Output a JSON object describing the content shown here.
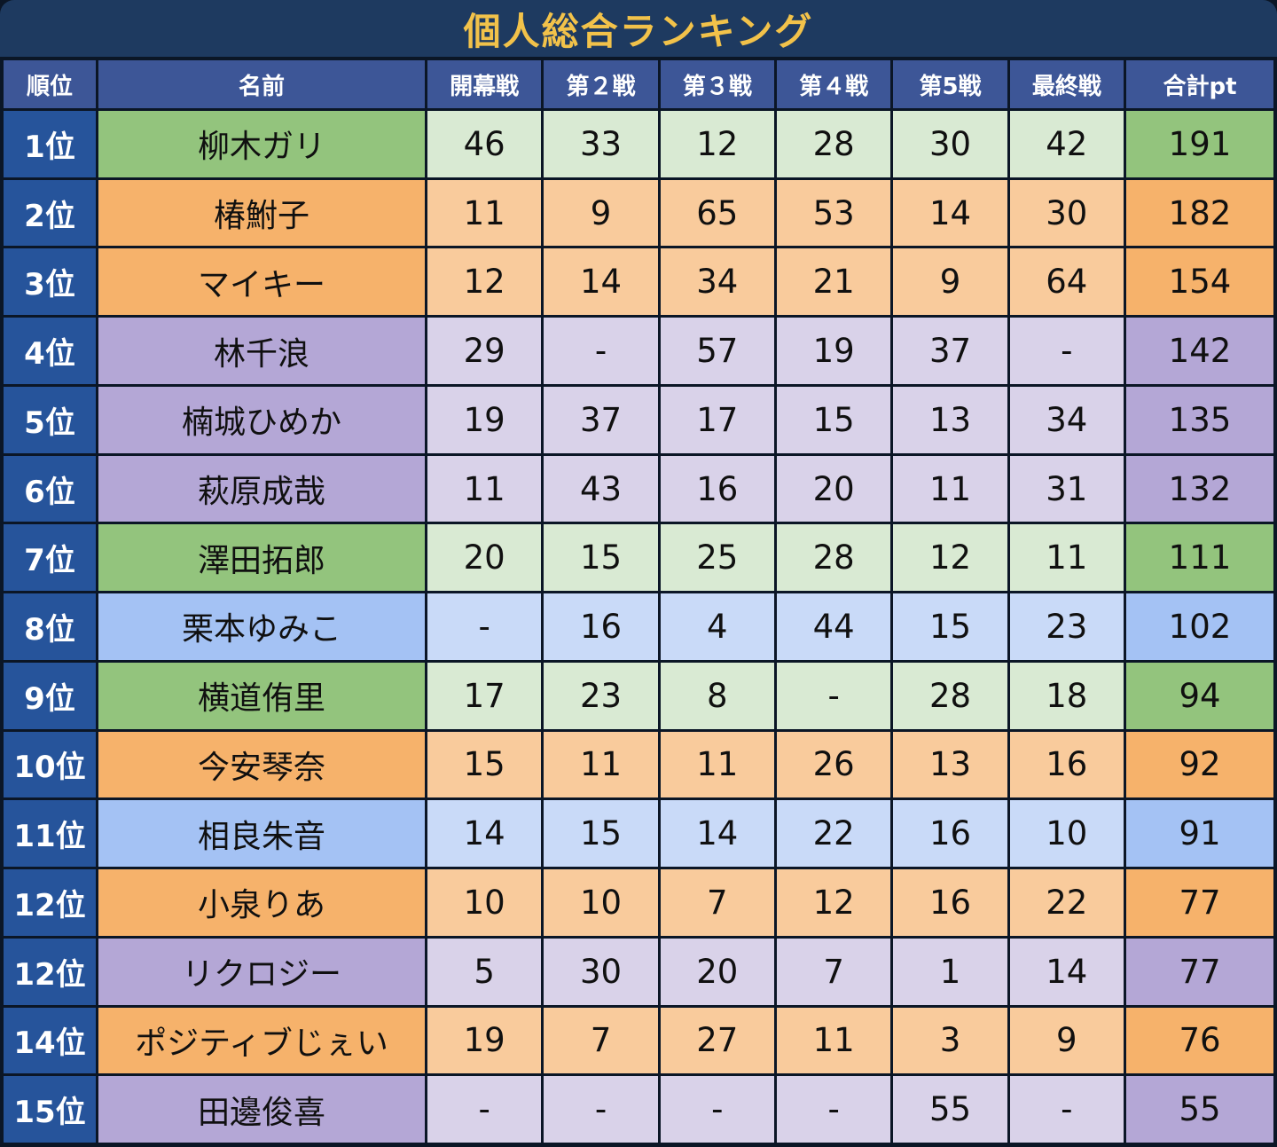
{
  "title": "個人総合ランキング",
  "colors": {
    "title_bg": "#1E3A60",
    "title_text": "#F2C24A",
    "header_bg": "#3D5697",
    "rank_bg": "#26549B",
    "border_bg": "#0B1626",
    "text_dark": "#101010",
    "text_light": "#FFFFFF",
    "palette": {
      "green": {
        "dark": "#93C47D",
        "light": "#D9EAD3"
      },
      "orange": {
        "dark": "#F6B26B",
        "light": "#F9CB9C"
      },
      "purple": {
        "dark": "#B4A7D6",
        "light": "#D9D2E9"
      },
      "blue": {
        "dark": "#A4C2F4",
        "light": "#C9DAF8"
      }
    }
  },
  "table": {
    "headers": [
      "順位",
      "名前",
      "開幕戦",
      "第２戦",
      "第３戦",
      "第４戦",
      "第5戦",
      "最終戦",
      "合計pt"
    ],
    "rows": [
      {
        "rank": "1位",
        "name": "柳木ガリ",
        "color": "green",
        "scores": [
          "46",
          "33",
          "12",
          "28",
          "30",
          "42"
        ],
        "total": "191"
      },
      {
        "rank": "2位",
        "name": "椿鮒子",
        "color": "orange",
        "scores": [
          "11",
          "9",
          "65",
          "53",
          "14",
          "30"
        ],
        "total": "182"
      },
      {
        "rank": "3位",
        "name": "マイキー",
        "color": "orange",
        "scores": [
          "12",
          "14",
          "34",
          "21",
          "9",
          "64"
        ],
        "total": "154"
      },
      {
        "rank": "4位",
        "name": "林千浪",
        "color": "purple",
        "scores": [
          "29",
          "-",
          "57",
          "19",
          "37",
          "-"
        ],
        "total": "142"
      },
      {
        "rank": "5位",
        "name": "楠城ひめか",
        "color": "purple",
        "scores": [
          "19",
          "37",
          "17",
          "15",
          "13",
          "34"
        ],
        "total": "135"
      },
      {
        "rank": "6位",
        "name": "萩原成哉",
        "color": "purple",
        "scores": [
          "11",
          "43",
          "16",
          "20",
          "11",
          "31"
        ],
        "total": "132"
      },
      {
        "rank": "7位",
        "name": "澤田拓郎",
        "color": "green",
        "scores": [
          "20",
          "15",
          "25",
          "28",
          "12",
          "11"
        ],
        "total": "111"
      },
      {
        "rank": "8位",
        "name": "栗本ゆみこ",
        "color": "blue",
        "scores": [
          "-",
          "16",
          "4",
          "44",
          "15",
          "23"
        ],
        "total": "102"
      },
      {
        "rank": "9位",
        "name": "横道侑里",
        "color": "green",
        "scores": [
          "17",
          "23",
          "8",
          "-",
          "28",
          "18"
        ],
        "total": "94"
      },
      {
        "rank": "10位",
        "name": "今安琴奈",
        "color": "orange",
        "scores": [
          "15",
          "11",
          "11",
          "26",
          "13",
          "16"
        ],
        "total": "92"
      },
      {
        "rank": "11位",
        "name": "相良朱音",
        "color": "blue",
        "scores": [
          "14",
          "15",
          "14",
          "22",
          "16",
          "10"
        ],
        "total": "91"
      },
      {
        "rank": "12位",
        "name": "小泉りあ",
        "color": "orange",
        "scores": [
          "10",
          "10",
          "7",
          "12",
          "16",
          "22"
        ],
        "total": "77"
      },
      {
        "rank": "12位",
        "name": "リクロジー",
        "color": "purple",
        "scores": [
          "5",
          "30",
          "20",
          "7",
          "1",
          "14"
        ],
        "total": "77"
      },
      {
        "rank": "14位",
        "name": "ポジティブじぇい",
        "color": "orange",
        "scores": [
          "19",
          "7",
          "27",
          "11",
          "3",
          "9"
        ],
        "total": "76"
      },
      {
        "rank": "15位",
        "name": "田邊俊喜",
        "color": "purple",
        "scores": [
          "-",
          "-",
          "-",
          "-",
          "55",
          "-"
        ],
        "total": "55"
      }
    ]
  }
}
